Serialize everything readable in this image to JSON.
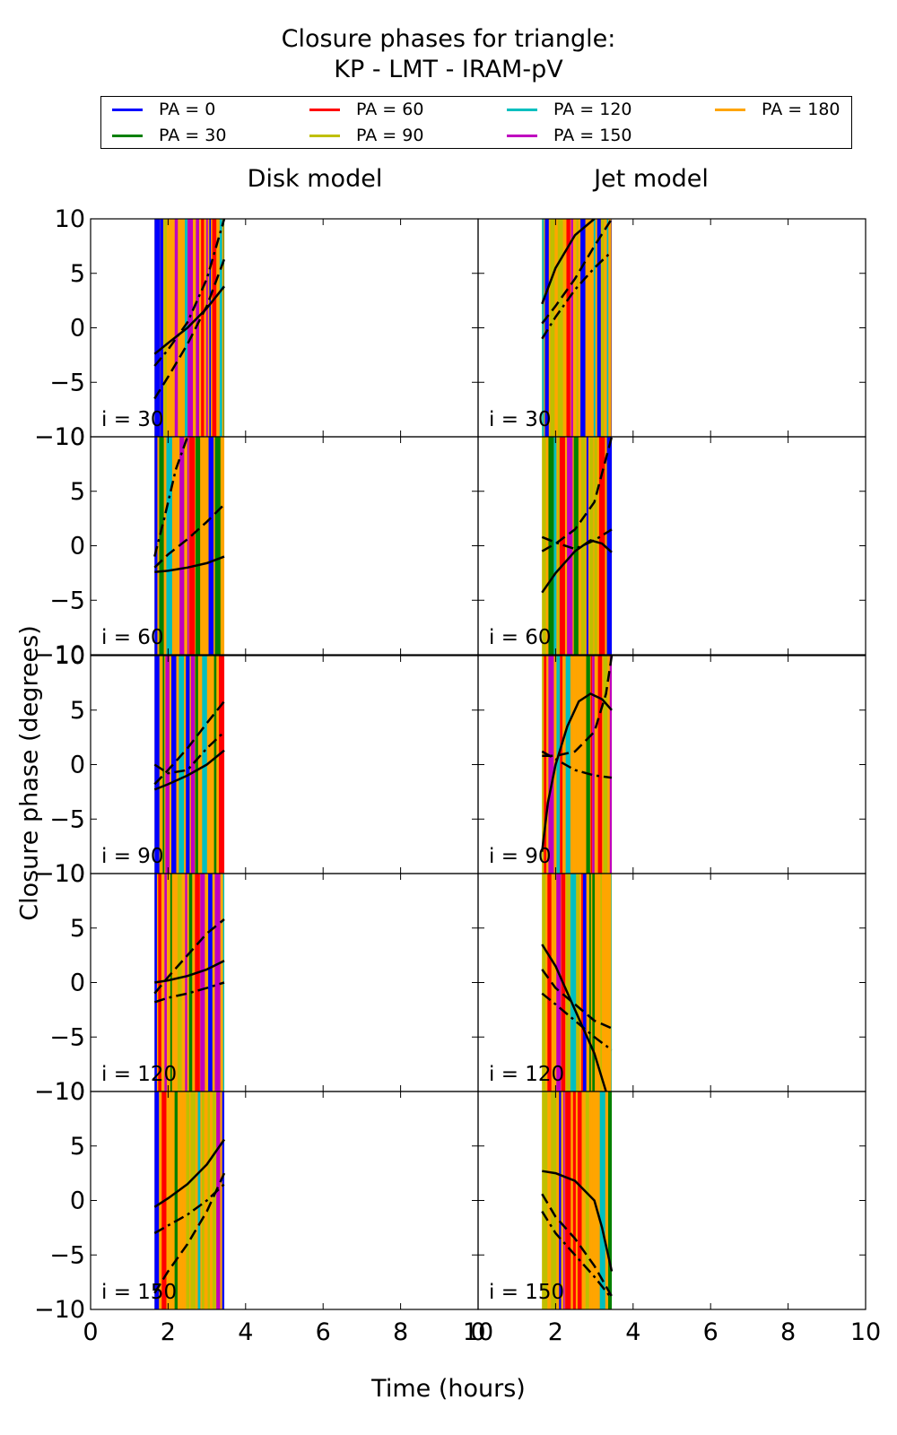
{
  "title_line1": "Closure phases for triangle:",
  "title_line2": "KP - LMT - IRAM-pV",
  "legend": [
    {
      "label": "PA = 0",
      "color": "#0000ff"
    },
    {
      "label": "PA = 30",
      "color": "#008000"
    },
    {
      "label": "PA = 60",
      "color": "#ff0000"
    },
    {
      "label": "PA = 90",
      "color": "#bfbf00"
    },
    {
      "label": "PA = 120",
      "color": "#00bfbf"
    },
    {
      "label": "PA = 150",
      "color": "#bf00bf"
    },
    {
      "label": "PA = 180",
      "color": "#ffa500"
    }
  ],
  "col_titles": [
    "Disk model",
    "Jet model"
  ],
  "xlabel": "Time (hours)",
  "ylabel": "Closure phase (degrees)",
  "row_labels": [
    "i = 30",
    "i = 60",
    "i = 90",
    "i = 120",
    "i = 150"
  ],
  "chart_data": {
    "type": "line",
    "xlim": [
      0,
      10
    ],
    "ylim": [
      -10,
      10
    ],
    "xticks": [
      0,
      2,
      4,
      6,
      8,
      10
    ],
    "yticks": [
      -10,
      -5,
      0,
      5,
      10
    ],
    "xtick_labels": [
      "0",
      "2",
      "4",
      "6",
      "8",
      "10"
    ],
    "ytick_labels": [
      "−10",
      "−5",
      "0",
      "5",
      "10"
    ],
    "band_range": [
      1.65,
      3.45
    ],
    "band_colors": [
      "#ffa500",
      "#bf00bf",
      "#00bfbf",
      "#bfbf00",
      "#ff0000",
      "#008000",
      "#0000ff"
    ],
    "panels": [
      {
        "col": 0,
        "row": 0,
        "series": [
          {
            "style": "solid",
            "x": [
              1.65,
              2.0,
              2.5,
              3.0,
              3.45
            ],
            "y": [
              -2.4,
              -1.4,
              0.0,
              1.8,
              3.8
            ]
          },
          {
            "style": "dashed",
            "x": [
              1.65,
              2.0,
              2.5,
              3.0,
              3.45
            ],
            "y": [
              -6.5,
              -4.5,
              -1.5,
              2.0,
              6.3
            ]
          },
          {
            "style": "dashdot",
            "x": [
              1.65,
              2.0,
              2.5,
              3.0,
              3.45
            ],
            "y": [
              -3.5,
              -2.0,
              0.5,
              4.5,
              10.0
            ]
          }
        ]
      },
      {
        "col": 1,
        "row": 0,
        "series": [
          {
            "style": "solid",
            "x": [
              1.65,
              2.0,
              2.5,
              3.0
            ],
            "y": [
              2.2,
              5.5,
              8.5,
              10.0
            ]
          },
          {
            "style": "dashed",
            "x": [
              1.65,
              2.0,
              2.5,
              3.0,
              3.45
            ],
            "y": [
              0.4,
              2.0,
              4.5,
              7.5,
              10.0
            ]
          },
          {
            "style": "dashdot",
            "x": [
              1.65,
              2.0,
              2.5,
              3.0,
              3.45
            ],
            "y": [
              -1.0,
              1.0,
              3.5,
              5.5,
              7.0
            ]
          }
        ]
      },
      {
        "col": 0,
        "row": 1,
        "series": [
          {
            "style": "solid",
            "x": [
              1.65,
              2.0,
              2.5,
              3.0,
              3.45
            ],
            "y": [
              -2.4,
              -2.3,
              -2.0,
              -1.6,
              -1.0
            ]
          },
          {
            "style": "dashed",
            "x": [
              1.65,
              2.0,
              2.5,
              3.0,
              3.45
            ],
            "y": [
              -2.0,
              -0.8,
              0.6,
              2.2,
              3.8
            ]
          },
          {
            "style": "dashdot",
            "x": [
              1.65,
              1.9,
              2.2,
              2.5
            ],
            "y": [
              -1.0,
              2.5,
              7.0,
              10.0
            ]
          }
        ]
      },
      {
        "col": 1,
        "row": 1,
        "series": [
          {
            "style": "solid",
            "x": [
              1.65,
              2.0,
              2.5,
              2.9,
              3.2,
              3.45
            ],
            "y": [
              -4.3,
              -2.5,
              -0.5,
              0.5,
              0.2,
              -0.6
            ]
          },
          {
            "style": "dashed",
            "x": [
              1.65,
              2.0,
              2.5,
              3.0,
              3.45
            ],
            "y": [
              -0.5,
              0.2,
              1.5,
              4.0,
              10.0
            ]
          },
          {
            "style": "dashdot",
            "x": [
              1.65,
              2.0,
              2.5,
              3.0,
              3.45
            ],
            "y": [
              0.8,
              0.3,
              -0.3,
              0.5,
              1.5
            ]
          }
        ]
      },
      {
        "col": 0,
        "row": 2,
        "series": [
          {
            "style": "solid",
            "x": [
              1.65,
              2.0,
              2.5,
              3.0,
              3.45
            ],
            "y": [
              -2.3,
              -1.8,
              -1.0,
              0.0,
              1.3
            ]
          },
          {
            "style": "dashed",
            "x": [
              1.65,
              2.0,
              2.5,
              3.0,
              3.45
            ],
            "y": [
              -1.8,
              -0.5,
              1.5,
              3.8,
              5.8
            ]
          },
          {
            "style": "dashdot",
            "x": [
              1.65,
              2.0,
              2.5,
              3.0,
              3.45
            ],
            "y": [
              0.0,
              -0.8,
              -0.5,
              1.5,
              3.0
            ]
          }
        ]
      },
      {
        "col": 1,
        "row": 2,
        "series": [
          {
            "style": "solid",
            "x": [
              1.65,
              1.8,
              2.0,
              2.3,
              2.6,
              2.9,
              3.2,
              3.45
            ],
            "y": [
              -8.0,
              -3.5,
              0.0,
              3.5,
              5.8,
              6.5,
              6.0,
              5.0
            ]
          },
          {
            "style": "dashed",
            "x": [
              1.65,
              2.0,
              2.5,
              3.0,
              3.3,
              3.45
            ],
            "y": [
              0.8,
              0.8,
              1.2,
              3.0,
              6.5,
              10.0
            ]
          },
          {
            "style": "dashdot",
            "x": [
              1.65,
              2.0,
              2.5,
              3.0,
              3.45
            ],
            "y": [
              1.2,
              0.5,
              -0.5,
              -1.0,
              -1.2
            ]
          }
        ]
      },
      {
        "col": 0,
        "row": 3,
        "series": [
          {
            "style": "solid",
            "x": [
              1.65,
              2.0,
              2.5,
              3.0,
              3.45
            ],
            "y": [
              0.0,
              0.2,
              0.6,
              1.2,
              2.0
            ]
          },
          {
            "style": "dashed",
            "x": [
              1.65,
              2.0,
              2.5,
              3.0,
              3.45
            ],
            "y": [
              -1.0,
              0.5,
              2.5,
              4.5,
              5.8
            ]
          },
          {
            "style": "dashdot",
            "x": [
              1.65,
              2.0,
              2.5,
              3.0,
              3.45
            ],
            "y": [
              -1.8,
              -1.4,
              -1.0,
              -0.5,
              0.0
            ]
          }
        ]
      },
      {
        "col": 1,
        "row": 3,
        "series": [
          {
            "style": "solid",
            "x": [
              1.65,
              2.0,
              2.5,
              3.0,
              3.3
            ],
            "y": [
              3.5,
              1.5,
              -2.5,
              -6.5,
              -10.0
            ]
          },
          {
            "style": "dashed",
            "x": [
              1.65,
              2.0,
              2.5,
              3.0,
              3.45
            ],
            "y": [
              1.2,
              -0.5,
              -2.0,
              -3.5,
              -4.2
            ]
          },
          {
            "style": "dashdot",
            "x": [
              1.65,
              2.0,
              2.5,
              3.0,
              3.45
            ],
            "y": [
              -1.0,
              -2.0,
              -3.5,
              -5.0,
              -6.2
            ]
          }
        ]
      },
      {
        "col": 0,
        "row": 4,
        "series": [
          {
            "style": "solid",
            "x": [
              1.65,
              2.0,
              2.5,
              3.0,
              3.45
            ],
            "y": [
              -0.6,
              0.2,
              1.5,
              3.3,
              5.6
            ]
          },
          {
            "style": "dashed",
            "x": [
              1.65,
              2.0,
              2.5,
              3.0,
              3.45
            ],
            "y": [
              -8.5,
              -6.5,
              -4.0,
              -1.0,
              2.5
            ]
          },
          {
            "style": "dashdot",
            "x": [
              1.65,
              2.0,
              2.5,
              3.0,
              3.45
            ],
            "y": [
              -3.0,
              -2.3,
              -1.3,
              0.0,
              1.5
            ]
          }
        ]
      },
      {
        "col": 1,
        "row": 4,
        "series": [
          {
            "style": "solid",
            "x": [
              1.65,
              2.0,
              2.5,
              3.0,
              3.2,
              3.45
            ],
            "y": [
              2.7,
              2.5,
              1.8,
              0.0,
              -2.5,
              -6.5
            ]
          },
          {
            "style": "dashed",
            "x": [
              1.65,
              2.0,
              2.5,
              3.0,
              3.45
            ],
            "y": [
              0.6,
              -1.5,
              -3.5,
              -6.0,
              -8.8
            ]
          },
          {
            "style": "dashdot",
            "x": [
              1.65,
              2.0,
              2.5,
              3.0,
              3.45
            ],
            "y": [
              -1.0,
              -3.0,
              -5.0,
              -7.0,
              -9.0
            ]
          }
        ]
      }
    ]
  }
}
